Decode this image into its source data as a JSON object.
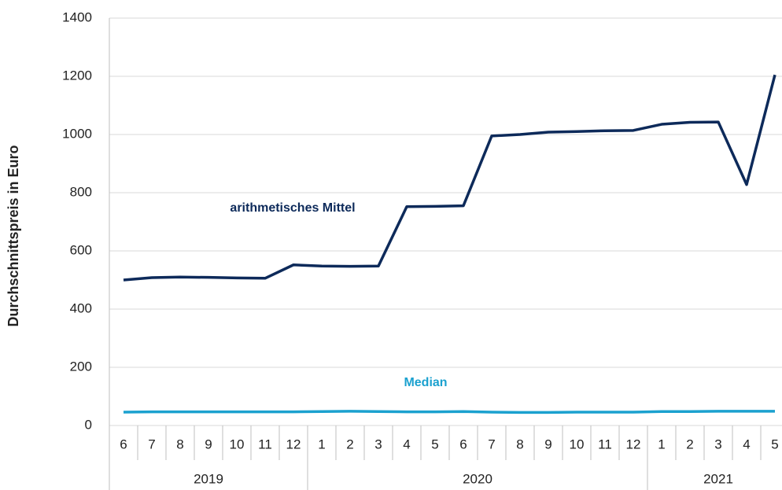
{
  "chart_data": {
    "type": "line",
    "y_label": "Durchschnittspreis in Euro",
    "categories": [
      "6",
      "7",
      "8",
      "9",
      "10",
      "11",
      "12",
      "1",
      "2",
      "3",
      "4",
      "5",
      "6",
      "7",
      "8",
      "9",
      "10",
      "11",
      "12",
      "1",
      "2",
      "3",
      "4",
      "5"
    ],
    "groups": [
      {
        "label": "2019",
        "count": 7
      },
      {
        "label": "2020",
        "count": 12
      },
      {
        "label": "2021",
        "count": 5
      }
    ],
    "series": [
      {
        "name": "arithmetisches Mittel",
        "color": "#0d2a5a",
        "values": [
          500,
          508,
          510,
          509,
          507,
          506,
          552,
          548,
          547,
          548,
          752,
          753,
          755,
          995,
          1000,
          1008,
          1010,
          1013,
          1014,
          1035,
          1042,
          1043,
          828,
          1205
        ]
      },
      {
        "name": "Median",
        "color": "#1ba1cf",
        "values": [
          46,
          47,
          47,
          47,
          47,
          47,
          47,
          48,
          49,
          48,
          47,
          47,
          48,
          46,
          45,
          45,
          46,
          46,
          46,
          48,
          48,
          49,
          49,
          49
        ]
      }
    ],
    "ylim": [
      0,
      1400
    ],
    "yticks": [
      0,
      200,
      400,
      600,
      800,
      1000,
      1200,
      1400
    ],
    "grid": true
  }
}
